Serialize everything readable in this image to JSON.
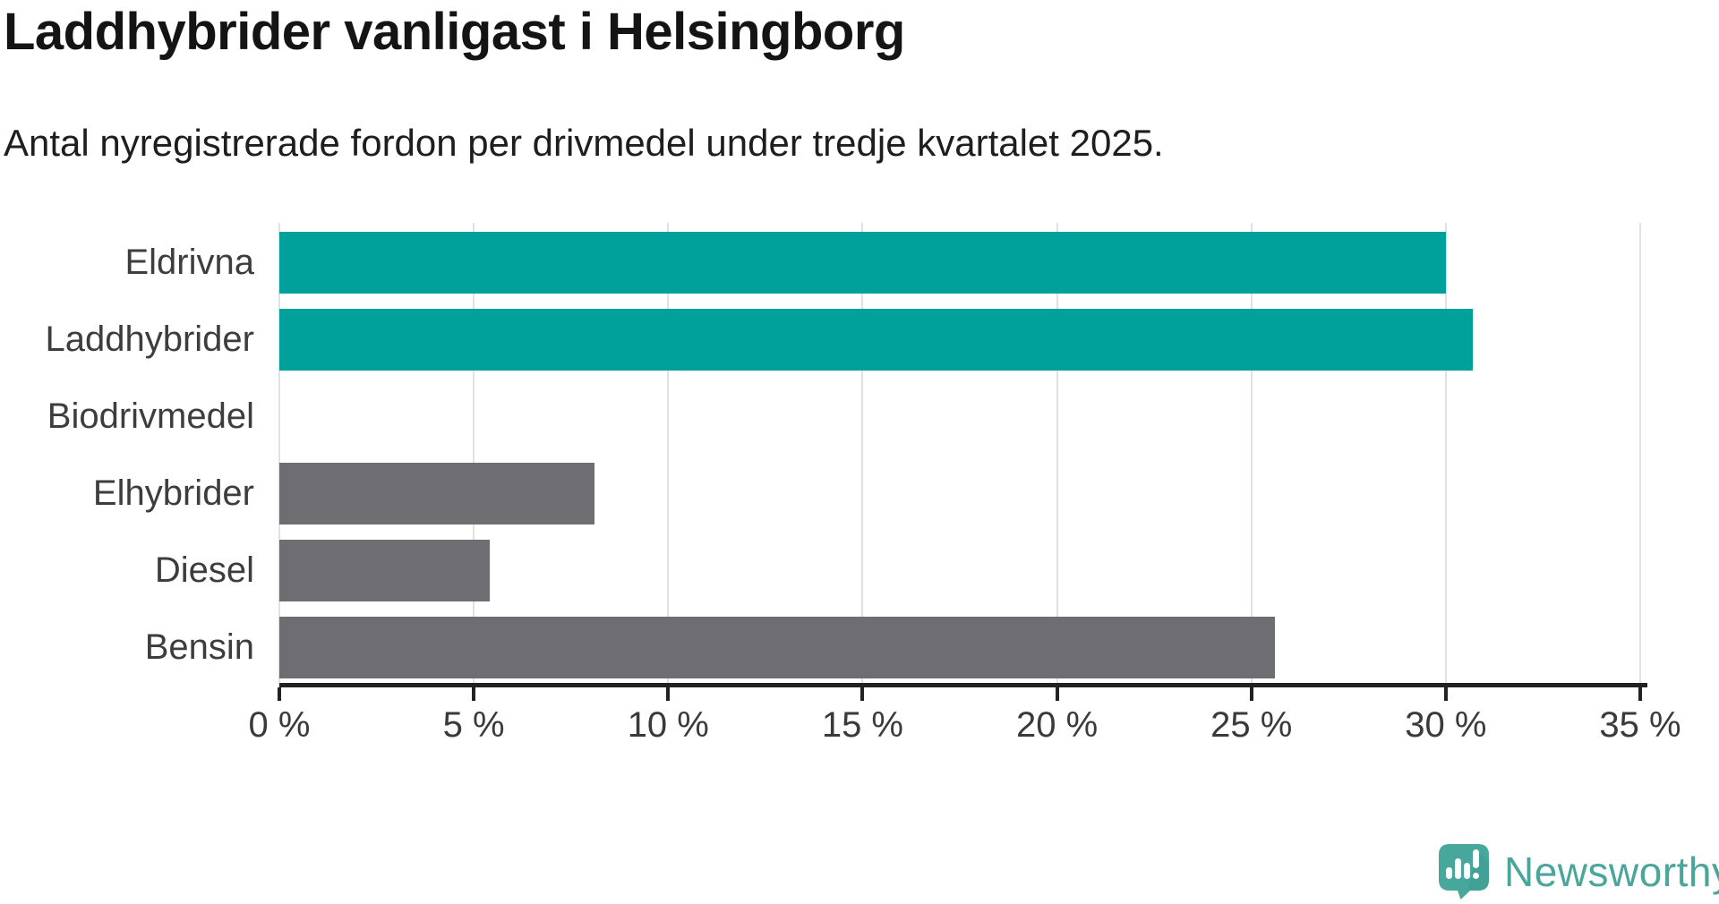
{
  "header": {
    "title": "Laddhybrider vanligast i Helsingborg",
    "subtitle": "Antal nyregistrerade fordon per drivmedel under tredje kvartalet 2025."
  },
  "chart_data": {
    "type": "bar",
    "orientation": "horizontal",
    "title": "Laddhybrider vanligast i Helsingborg",
    "subtitle": "Antal nyregistrerade fordon per drivmedel under tredje kvartalet 2025.",
    "categories": [
      "Eldrivna",
      "Laddhybrider",
      "Biodrivmedel",
      "Elhybrider",
      "Diesel",
      "Bensin"
    ],
    "values": [
      30.0,
      30.7,
      0,
      8.1,
      5.4,
      25.6
    ],
    "unit": "%",
    "bar_colors": [
      "#00a19a",
      "#00a19a",
      "#6e6e72",
      "#6e6e72",
      "#6e6e72",
      "#6e6e72"
    ],
    "highlight_color": "#00a19a",
    "default_color": "#6e6e72",
    "xlim": [
      0,
      35
    ],
    "xticks": [
      0,
      5,
      10,
      15,
      20,
      25,
      30,
      35
    ],
    "xtick_labels": [
      "0 %",
      "5 %",
      "10 %",
      "15 %",
      "20 %",
      "25 %",
      "30 %",
      "35 %"
    ],
    "xlabel": "",
    "ylabel": "",
    "grid": "vertical-only",
    "gridline_color": "#e1e1e1",
    "axis_color": "#222222",
    "legend": "none"
  },
  "branding": {
    "name": "Newsworthy",
    "icon": "newsworthy-bubble-chart-icon",
    "icon_color": "#48a79c",
    "icon_shade_color": "#3d9c91",
    "icon_glyph_color": "#ffffff",
    "text_color": "#4aa59b"
  }
}
